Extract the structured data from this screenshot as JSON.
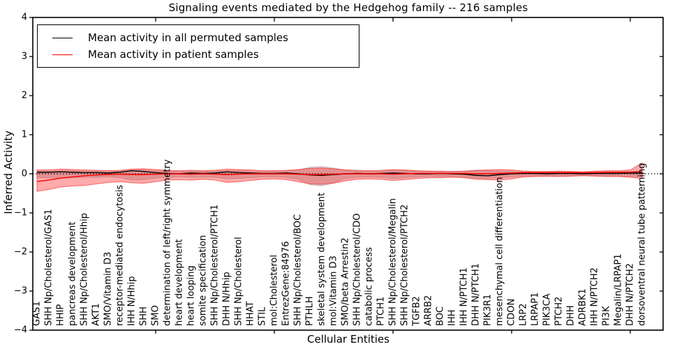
{
  "chart_data": {
    "type": "line",
    "title": "Signaling events mediated by the Hedgehog family -- 216 samples",
    "xlabel": "Cellular Entities",
    "ylabel": "Inferred Activity",
    "ylim": [
      -4,
      4
    ],
    "grid": false,
    "legend_position": "upper left",
    "zero_line": {
      "style": "dotted",
      "color": "#000000",
      "value": 0
    },
    "y_ticks": [
      {
        "value": 4,
        "label": "4"
      },
      {
        "value": 3,
        "label": "3"
      },
      {
        "value": 2,
        "label": "2"
      },
      {
        "value": 1,
        "label": "1"
      },
      {
        "value": 0,
        "label": "0"
      },
      {
        "value": -1,
        "label": "−1"
      },
      {
        "value": -2,
        "label": "−2"
      },
      {
        "value": -3,
        "label": "−3"
      },
      {
        "value": -4,
        "label": "−4"
      }
    ],
    "x_major_ticks": [
      10,
      20,
      30,
      40,
      50
    ],
    "categories": [
      "GAS1",
      "SHH Np/Cholesterol/GAS1",
      "HHIP",
      "pancreas development",
      "SHH Np/Cholesterol/Hhip",
      "AKT1",
      "SMO/Vitamin D3",
      "receptor-mediated endocytosis",
      "IHH N/Hhip",
      "SHH",
      "SMO",
      "determination of left/right symmetry",
      "heart development",
      "heart looping",
      "somite specification",
      "SHH Np/Cholesterol/PTCH1",
      "DHH N/Hhip",
      "SHH Np/Cholesterol",
      "HHAT",
      "STIL",
      "mol:Cholesterol",
      "EntrezGene:84976",
      "SHH Np/Cholesterol/BOC",
      "PTHLH",
      "skeletal system development",
      "mol:Vitamin D3",
      "SMO/beta Arrestin2",
      "SHH Np/Cholesterol/CDO",
      "catabolic process",
      "PTCH1",
      "SHH Np/Cholesterol/Megalin",
      "SHH Np/Cholesterol/PTCH2",
      "TGFB2",
      "ARRB2",
      "BOC",
      "IHH",
      "IHH N/PTCH1",
      "DHH N/PTCH1",
      "PIK3R1",
      "mesenchymal cell differentiation",
      "CDON",
      "LRP2",
      "LRPAP1",
      "PIK3CA",
      "PTCH2",
      "DHH",
      "ADRBK1",
      "IHH N/PTCH2",
      "PI3K",
      "Megalin/LRPAP1",
      "DHH N/PTCH2",
      "dorsoventral neural tube patterning"
    ],
    "series": [
      {
        "name": "Mean activity in all permuted samples",
        "color": "#000000",
        "values": [
          0.04,
          0.04,
          0.05,
          0.04,
          0.03,
          0.03,
          0.02,
          0.04,
          0.08,
          0.06,
          0.03,
          0.01,
          0.0,
          0.02,
          0.01,
          0.02,
          0.05,
          0.03,
          0.02,
          0.01,
          0.01,
          0.02,
          0.0,
          -0.03,
          -0.04,
          -0.02,
          0.0,
          0.01,
          0.0,
          0.01,
          0.02,
          0.01,
          0.0,
          0.0,
          0.01,
          0.0,
          -0.01,
          -0.04,
          -0.05,
          -0.02,
          0.0,
          0.01,
          0.01,
          0.0,
          0.01,
          0.01,
          0.0,
          0.01,
          0.01,
          0.01,
          0.02,
          0.02
        ]
      },
      {
        "name": "Mean activity in patient samples",
        "color": "#ff0000",
        "values": [
          -0.2,
          -0.16,
          -0.11,
          -0.08,
          -0.05,
          -0.03,
          -0.02,
          -0.01,
          -0.02,
          -0.02,
          -0.01,
          0.0,
          0.0,
          -0.01,
          0.0,
          -0.01,
          -0.02,
          -0.01,
          0.0,
          0.0,
          0.0,
          0.0,
          -0.01,
          -0.02,
          -0.02,
          -0.01,
          0.0,
          0.0,
          0.0,
          0.0,
          -0.01,
          0.0,
          0.01,
          0.01,
          0.01,
          0.01,
          0.01,
          0.0,
          0.0,
          0.01,
          0.02,
          0.03,
          0.03,
          0.03,
          0.03,
          0.03,
          0.03,
          0.03,
          0.04,
          0.04,
          0.04,
          0.06
        ]
      }
    ],
    "bands": [
      {
        "name": "permuted samples range",
        "color": "#7f7f7f",
        "fill_opacity": 0.3,
        "edge_opacity": 0.35,
        "upper": [
          0.07,
          0.07,
          0.08,
          0.08,
          0.07,
          0.07,
          0.06,
          0.07,
          0.1,
          0.1,
          0.08,
          0.07,
          0.06,
          0.07,
          0.06,
          0.07,
          0.08,
          0.08,
          0.07,
          0.06,
          0.06,
          0.07,
          0.1,
          0.17,
          0.19,
          0.15,
          0.09,
          0.07,
          0.06,
          0.07,
          0.09,
          0.08,
          0.06,
          0.06,
          0.05,
          0.05,
          0.06,
          0.08,
          0.08,
          0.07,
          0.06,
          0.05,
          0.05,
          0.05,
          0.05,
          0.05,
          0.04,
          0.05,
          0.05,
          0.05,
          0.06,
          0.07
        ],
        "lower": [
          -0.1,
          -0.1,
          -0.11,
          -0.1,
          -0.09,
          -0.09,
          -0.08,
          -0.1,
          -0.16,
          -0.15,
          -0.11,
          -0.09,
          -0.08,
          -0.09,
          -0.08,
          -0.09,
          -0.13,
          -0.12,
          -0.1,
          -0.08,
          -0.08,
          -0.09,
          -0.14,
          -0.28,
          -0.31,
          -0.24,
          -0.12,
          -0.09,
          -0.08,
          -0.09,
          -0.12,
          -0.1,
          -0.08,
          -0.07,
          -0.07,
          -0.06,
          -0.08,
          -0.11,
          -0.12,
          -0.1,
          -0.08,
          -0.06,
          -0.06,
          -0.06,
          -0.06,
          -0.06,
          -0.05,
          -0.05,
          -0.06,
          -0.06,
          -0.07,
          -0.08
        ]
      },
      {
        "name": "patient samples range",
        "color": "#ff0000",
        "fill_opacity": 0.33,
        "edge_opacity": 0.55,
        "upper": [
          0.1,
          0.1,
          0.12,
          0.11,
          0.1,
          0.09,
          0.08,
          0.09,
          0.12,
          0.13,
          0.11,
          0.09,
          0.08,
          0.09,
          0.08,
          0.09,
          0.12,
          0.11,
          0.1,
          0.08,
          0.08,
          0.09,
          0.11,
          0.14,
          0.15,
          0.13,
          0.1,
          0.09,
          0.08,
          0.09,
          0.11,
          0.1,
          0.08,
          0.07,
          0.07,
          0.06,
          0.07,
          0.09,
          0.1,
          0.11,
          0.1,
          0.07,
          0.06,
          0.06,
          0.07,
          0.06,
          0.05,
          0.07,
          0.08,
          0.08,
          0.1,
          0.28
        ],
        "lower": [
          -0.45,
          -0.4,
          -0.34,
          -0.31,
          -0.3,
          -0.26,
          -0.22,
          -0.2,
          -0.23,
          -0.24,
          -0.2,
          -0.16,
          -0.15,
          -0.16,
          -0.14,
          -0.16,
          -0.22,
          -0.2,
          -0.17,
          -0.14,
          -0.13,
          -0.15,
          -0.2,
          -0.26,
          -0.27,
          -0.24,
          -0.18,
          -0.14,
          -0.13,
          -0.14,
          -0.17,
          -0.15,
          -0.12,
          -0.1,
          -0.1,
          -0.09,
          -0.1,
          -0.14,
          -0.15,
          -0.16,
          -0.13,
          -0.08,
          -0.07,
          -0.06,
          -0.07,
          -0.06,
          -0.05,
          -0.06,
          -0.07,
          -0.07,
          -0.09,
          -0.12
        ]
      }
    ]
  },
  "colors": {
    "frame": "#000000",
    "background": "#ffffff",
    "permuted_line": "#000000",
    "patient_line": "#ff0000"
  }
}
